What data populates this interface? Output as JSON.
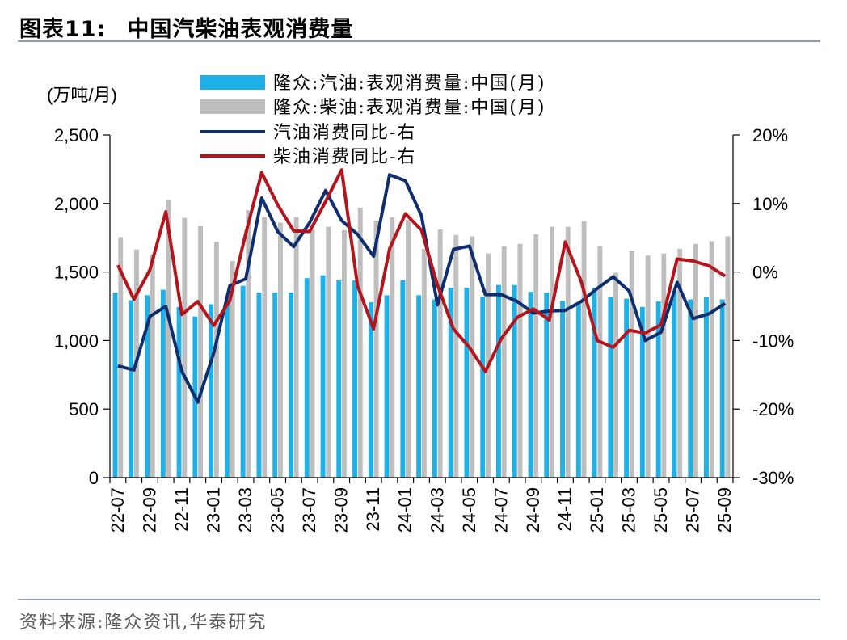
{
  "header": {
    "figure_label": "图表11:",
    "title": "中国汽柴油表观消费量"
  },
  "footer": {
    "source": "资料来源:隆众资讯,华泰研究"
  },
  "colors": {
    "gasoline_bar": "#1eb0e6",
    "diesel_bar": "#bebebe",
    "gasoline_line": "#0e2e6e",
    "diesel_line": "#b4141c",
    "rule": "#8c9cae"
  },
  "chart_data": {
    "type": "bar",
    "title": "中国汽柴油表观消费量",
    "ylabel_left": "(万吨/月)",
    "ylim_left": [
      0,
      2500
    ],
    "yticks_left": [
      "0",
      "500",
      "1,000",
      "1,500",
      "2,000",
      "2,500"
    ],
    "ylim_right": [
      -30,
      20
    ],
    "yticks_right": [
      "-30%",
      "-20%",
      "-10%",
      "0%",
      "10%",
      "20%"
    ],
    "legend_position": "top",
    "categories": [
      "22-07",
      "22-08",
      "22-09",
      "22-10",
      "22-11",
      "22-12",
      "23-01",
      "23-02",
      "23-03",
      "23-04",
      "23-05",
      "23-06",
      "23-07",
      "23-08",
      "23-09",
      "23-10",
      "23-11",
      "23-12",
      "24-01",
      "24-02",
      "24-03",
      "24-04",
      "24-05",
      "24-06",
      "24-07",
      "24-08",
      "24-09",
      "24-10",
      "24-11",
      "24-12",
      "25-01",
      "25-02",
      "25-03",
      "25-04",
      "25-05",
      "25-06",
      "25-07",
      "25-08",
      "25-09"
    ],
    "xtick_labels": [
      "22-07",
      "22-09",
      "22-11",
      "23-01",
      "23-03",
      "23-05",
      "23-07",
      "23-09",
      "23-11",
      "24-01",
      "24-03",
      "24-05",
      "24-07",
      "24-09",
      "24-11",
      "25-01",
      "25-03",
      "25-05",
      "25-07",
      "25-09"
    ],
    "series": [
      {
        "name": "隆众:汽油:表观消费量:中国(月)",
        "type": "bar",
        "axis": "left",
        "values": [
          1350,
          1295,
          1330,
          1370,
          1245,
          1175,
          1265,
          1300,
          1400,
          1350,
          1350,
          1350,
          1455,
          1475,
          1440,
          1440,
          1280,
          1330,
          1440,
          1330,
          1300,
          1385,
          1385,
          1320,
          1405,
          1405,
          1355,
          1350,
          1290,
          1270,
          1385,
          1315,
          1305,
          1245,
          1285,
          1360,
          1300,
          1315,
          1300
        ]
      },
      {
        "name": "隆众:柴油:表观消费量:中国(月)",
        "type": "bar",
        "axis": "left",
        "values": [
          1755,
          1665,
          1630,
          2025,
          1895,
          1835,
          1720,
          1580,
          1950,
          1900,
          1860,
          1900,
          1810,
          1830,
          1805,
          1970,
          1875,
          1900,
          1880,
          1670,
          1810,
          1770,
          1760,
          1635,
          1690,
          1705,
          1775,
          1830,
          1830,
          1870,
          1690,
          1495,
          1655,
          1620,
          1635,
          1670,
          1705,
          1725,
          1760
        ]
      },
      {
        "name": "汽油消费同比-右",
        "type": "line",
        "axis": "right",
        "values": [
          -13.7,
          -14.3,
          -6.5,
          -5.0,
          -14.5,
          -19.0,
          -11.8,
          -2.0,
          -1.0,
          10.8,
          5.9,
          3.7,
          7.2,
          11.9,
          7.5,
          5.5,
          2.3,
          14.2,
          13.3,
          8.2,
          -4.8,
          3.3,
          3.8,
          -3.3,
          -3.3,
          -4.3,
          -6.0,
          -5.7,
          -5.6,
          -4.3,
          -2.4,
          -0.7,
          -2.8,
          -10.0,
          -8.8,
          -1.5,
          -6.8,
          -6.1,
          -4.6
        ]
      },
      {
        "name": "柴油消费同比-右",
        "type": "line",
        "axis": "right",
        "values": [
          1.0,
          -4.0,
          0.3,
          8.8,
          -6.2,
          -4.3,
          -7.8,
          -4.2,
          5.6,
          14.5,
          9.8,
          6.0,
          5.9,
          10.3,
          14.9,
          -2.0,
          -8.3,
          3.4,
          8.5,
          6.1,
          -1.9,
          -8.3,
          -11.0,
          -14.5,
          -9.7,
          -6.6,
          -5.4,
          -7.0,
          4.4,
          -1.4,
          -10.0,
          -11.0,
          -8.5,
          -8.9,
          -7.7,
          1.9,
          1.6,
          0.9,
          -0.6
        ]
      }
    ]
  }
}
